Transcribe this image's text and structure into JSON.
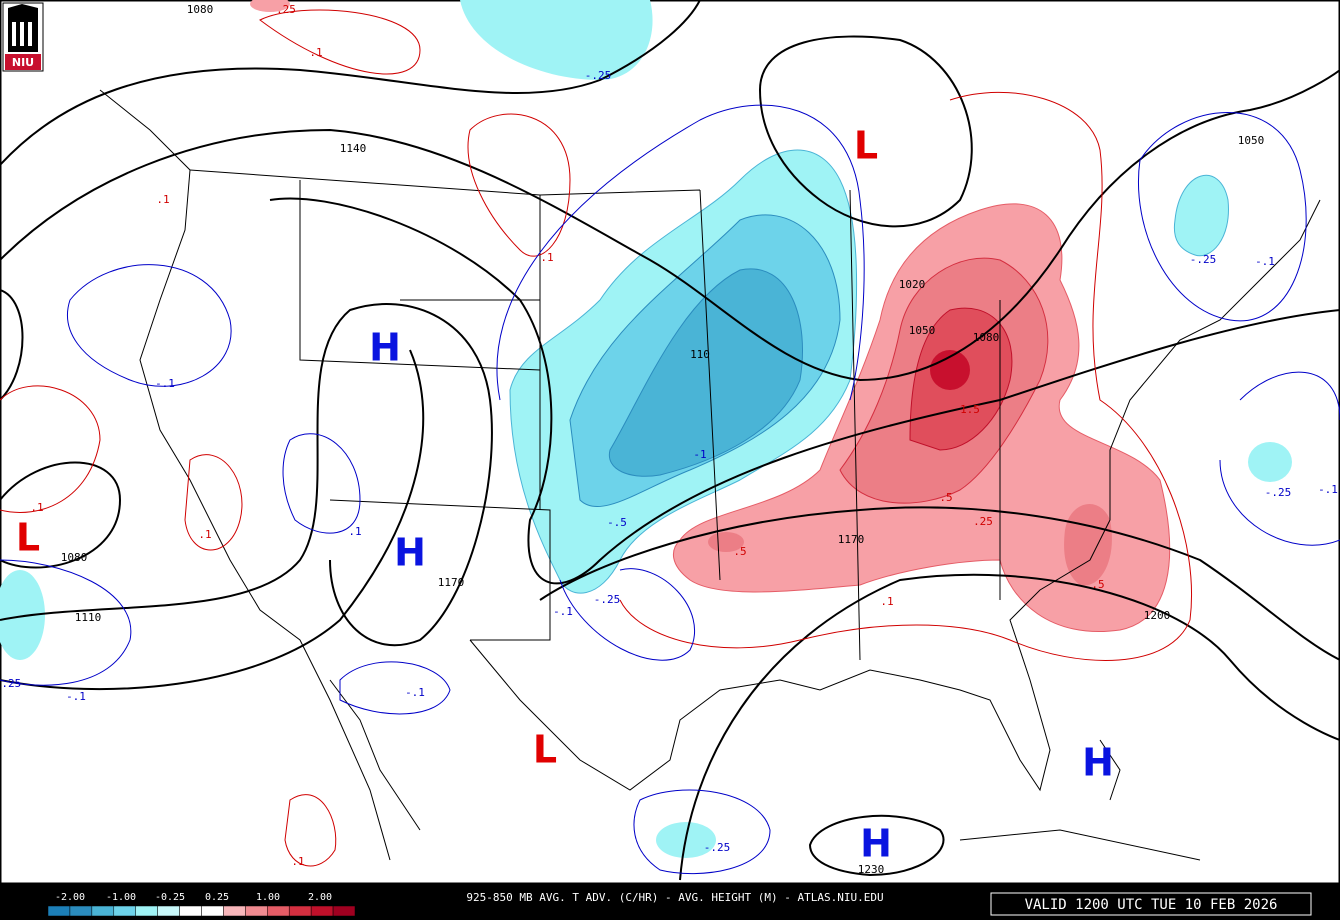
{
  "logo": "NIU",
  "footer": {
    "title": "925-850 MB AVG. T ADV. (C/HR) - AVG. HEIGHT (M) - ATLAS.NIU.EDU",
    "valid": "VALID 1200 UTC TUE 10 FEB 2026"
  },
  "colorbar": {
    "labels": [
      "-2.00",
      "-1.00",
      "-0.25",
      "0.25",
      "1.00",
      "2.00"
    ]
  },
  "centers": [
    "H",
    "H",
    "H",
    "H",
    "L",
    "L",
    "L"
  ],
  "contour_labels": [
    "1080",
    "1140",
    "1020",
    "1050",
    "1080",
    "110",
    "1170",
    "1170",
    "1080",
    "1110",
    "1200",
    "1230",
    "1050",
    ".25",
    ".1",
    "-.25",
    ".1",
    ".1",
    "-.25",
    "-.1",
    "-.1",
    "-1",
    "-.5",
    ".1",
    ".1",
    ".1",
    ".5",
    ".5",
    ".25",
    "1.5",
    ".5",
    ".1",
    "-.1",
    "-.25",
    "-.25",
    "-.1",
    "-.1",
    "-.1",
    "-.25",
    ".1",
    "-.25"
  ]
}
